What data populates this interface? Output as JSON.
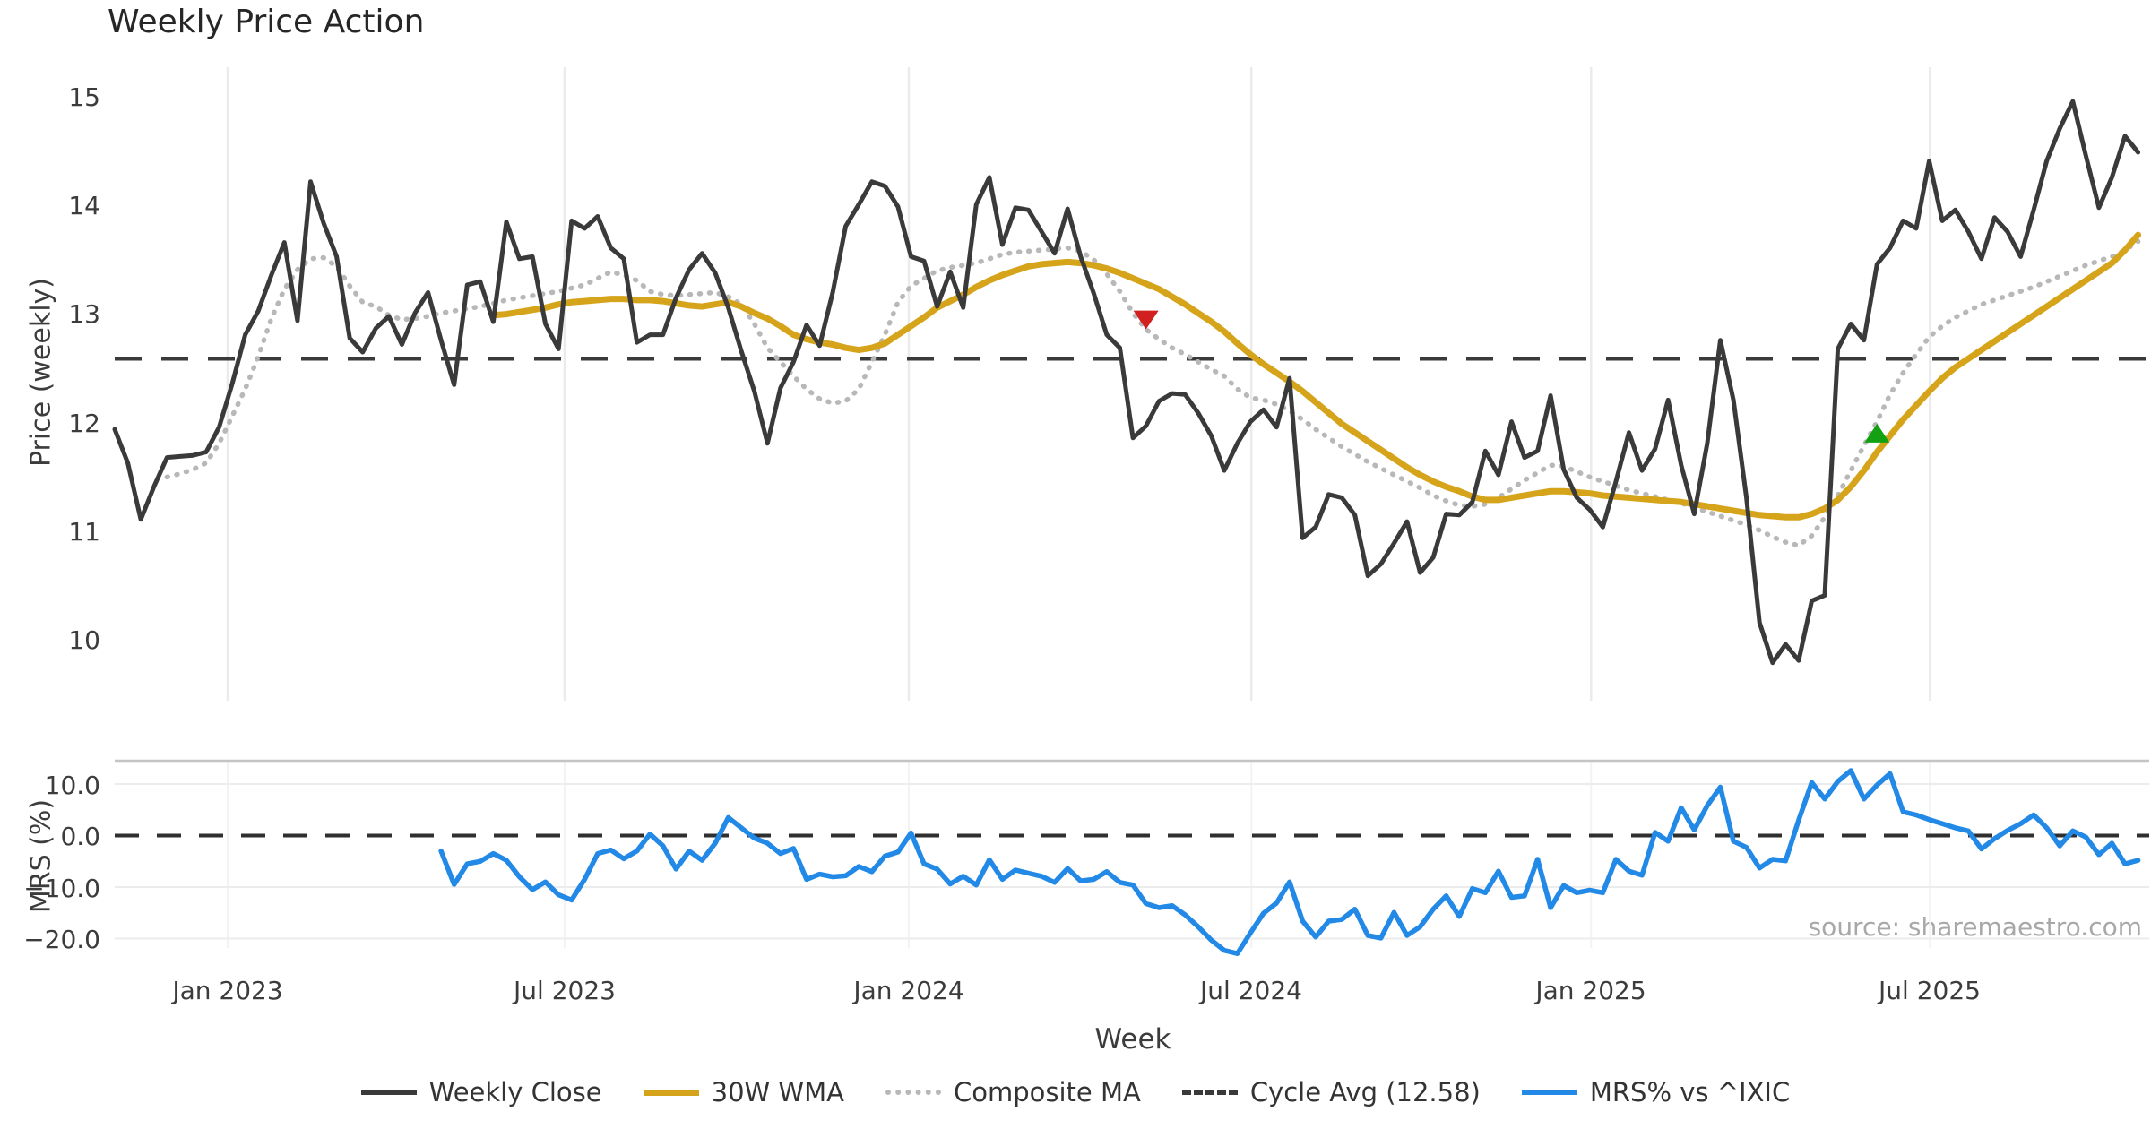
{
  "title": "Weekly Price Action",
  "source_text": "source: sharemaestro.com",
  "legend": {
    "items": [
      {
        "label": "Weekly Close",
        "color": "#3a3a3a",
        "style": "solid"
      },
      {
        "label": "30W WMA",
        "color": "#d6a41b",
        "style": "solid"
      },
      {
        "label": "Composite MA",
        "color": "#b8b8b8",
        "style": "dotted"
      },
      {
        "label": "Cycle Avg (12.58)",
        "color": "#3a3a3a",
        "style": "dashed"
      },
      {
        "label": "MRS% vs ^IXIC",
        "color": "#2289e6",
        "style": "solid"
      }
    ]
  },
  "chart_data": {
    "type": "line",
    "title": "Weekly Price Action",
    "x_axis": {
      "label": "Week",
      "tick_labels": [
        "Jan 2023",
        "Jul 2023",
        "Jan 2024",
        "Jul 2024",
        "Jan 2025",
        "Jul 2025"
      ],
      "tick_index_positions": [
        8.65,
        34.46,
        60.83,
        87.07,
        113.1,
        139.05
      ],
      "total_weeks": 156,
      "grid": true
    },
    "price_panel": {
      "ylabel": "Price (weekly)",
      "ytick_labels": [
        "15",
        "14",
        "13",
        "12",
        "11",
        "10"
      ],
      "ytick_values": [
        15,
        14,
        13,
        12,
        11,
        10
      ],
      "ylim": [
        9.4,
        15.3
      ],
      "cycle_avg": 12.58,
      "cycle_avg_color": "#3a3a3a",
      "series": {
        "weekly_close": {
          "name": "Weekly Close",
          "color": "#3a3a3a",
          "start_index": 0,
          "values": [
            11.93,
            11.62,
            11.1,
            11.4,
            11.67,
            11.68,
            11.69,
            11.72,
            11.95,
            12.35,
            12.8,
            13.02,
            13.35,
            13.65,
            12.93,
            14.21,
            13.83,
            13.52,
            12.77,
            12.64,
            12.86,
            12.97,
            12.71,
            13.0,
            13.19,
            12.75,
            12.34,
            13.26,
            13.29,
            12.92,
            13.84,
            13.5,
            13.52,
            12.9,
            12.67,
            13.85,
            13.78,
            13.89,
            13.6,
            13.5,
            12.73,
            12.8,
            12.8,
            13.14,
            13.4,
            13.55,
            13.37,
            13.05,
            12.65,
            12.28,
            11.8,
            12.31,
            12.55,
            12.89,
            12.7,
            13.19,
            13.8,
            14.0,
            14.21,
            14.17,
            13.98,
            13.52,
            13.48,
            13.06,
            13.38,
            13.05,
            14.0,
            14.25,
            13.63,
            13.97,
            13.95,
            13.75,
            13.55,
            13.96,
            13.52,
            13.18,
            12.8,
            12.68,
            11.85,
            11.96,
            12.19,
            12.26,
            12.25,
            12.08,
            11.87,
            11.55,
            11.8,
            12.0,
            12.11,
            11.95,
            12.4,
            10.93,
            11.03,
            11.33,
            11.3,
            11.14,
            10.58,
            10.69,
            10.88,
            11.08,
            10.61,
            10.75,
            11.15,
            11.14,
            11.26,
            11.73,
            11.51,
            12.0,
            11.67,
            11.73,
            12.24,
            11.56,
            11.3,
            11.19,
            11.03,
            11.45,
            11.9,
            11.55,
            11.75,
            12.2,
            11.6,
            11.15,
            11.8,
            12.75,
            12.2,
            11.3,
            10.15,
            9.78,
            9.95,
            9.8,
            10.35,
            10.4,
            12.67,
            12.9,
            12.75,
            13.45,
            13.6,
            13.85,
            13.78,
            14.4,
            13.85,
            13.95,
            13.75,
            13.5,
            13.88,
            13.75,
            13.52,
            13.95,
            14.4,
            14.7,
            14.95,
            14.45,
            13.97,
            14.25,
            14.63,
            14.48
          ]
        },
        "wma_30w": {
          "name": "30W WMA",
          "color": "#d6a41b",
          "start_index": 29,
          "values": [
            12.98,
            12.99,
            13.01,
            13.03,
            13.05,
            13.08,
            13.1,
            13.11,
            13.12,
            13.13,
            13.13,
            13.12,
            13.12,
            13.11,
            13.09,
            13.07,
            13.06,
            13.08,
            13.1,
            13.06,
            13.0,
            12.95,
            12.88,
            12.8,
            12.76,
            12.73,
            12.71,
            12.68,
            12.66,
            12.68,
            12.72,
            12.8,
            12.88,
            12.96,
            13.05,
            13.11,
            13.17,
            13.24,
            13.3,
            13.35,
            13.39,
            13.43,
            13.45,
            13.46,
            13.47,
            13.46,
            13.44,
            13.41,
            13.37,
            13.32,
            13.27,
            13.22,
            13.15,
            13.08,
            13.0,
            12.92,
            12.83,
            12.72,
            12.62,
            12.53,
            12.45,
            12.37,
            12.28,
            12.18,
            12.08,
            11.98,
            11.9,
            11.82,
            11.74,
            11.66,
            11.58,
            11.51,
            11.45,
            11.4,
            11.36,
            11.31,
            11.28,
            11.28,
            11.3,
            11.32,
            11.34,
            11.36,
            11.36,
            11.35,
            11.34,
            11.32,
            11.31,
            11.3,
            11.29,
            11.28,
            11.27,
            11.26,
            11.24,
            11.22,
            11.2,
            11.18,
            11.16,
            11.14,
            11.13,
            11.12,
            11.12,
            11.15,
            11.2,
            11.28,
            11.4,
            11.55,
            11.72,
            11.87,
            12.02,
            12.15,
            12.28,
            12.4,
            12.5,
            12.58,
            12.66,
            12.74,
            12.82,
            12.9,
            12.98,
            13.06,
            13.14,
            13.22,
            13.3,
            13.38,
            13.46,
            13.58,
            13.72
          ]
        },
        "composite_ma": {
          "name": "Composite MA",
          "color": "#b8b8b8",
          "start_index": 4,
          "values": [
            11.49,
            11.52,
            11.56,
            11.62,
            11.8,
            12.05,
            12.3,
            12.6,
            12.95,
            13.22,
            13.4,
            13.5,
            13.51,
            13.43,
            13.25,
            13.1,
            13.06,
            12.98,
            12.94,
            12.95,
            12.97,
            13.0,
            13.02,
            13.04,
            13.06,
            13.09,
            13.12,
            13.14,
            13.16,
            13.18,
            13.2,
            13.23,
            13.26,
            13.32,
            13.38,
            13.35,
            13.3,
            13.2,
            13.17,
            13.16,
            13.17,
            13.18,
            13.19,
            13.15,
            13.08,
            12.9,
            12.68,
            12.55,
            12.42,
            12.3,
            12.21,
            12.17,
            12.19,
            12.3,
            12.55,
            12.8,
            13.1,
            13.25,
            13.32,
            13.39,
            13.42,
            13.44,
            13.46,
            13.5,
            13.54,
            13.56,
            13.57,
            13.58,
            13.59,
            13.6,
            13.57,
            13.49,
            13.36,
            13.2,
            13.0,
            12.85,
            12.76,
            12.68,
            12.62,
            12.55,
            12.48,
            12.42,
            12.3,
            12.22,
            12.2,
            12.16,
            12.1,
            12.02,
            11.93,
            11.85,
            11.77,
            11.7,
            11.63,
            11.57,
            11.51,
            11.45,
            11.39,
            11.32,
            11.27,
            11.23,
            11.22,
            11.24,
            11.3,
            11.38,
            11.46,
            11.53,
            11.6,
            11.59,
            11.54,
            11.49,
            11.45,
            11.41,
            11.37,
            11.34,
            11.31,
            11.28,
            11.25,
            11.21,
            11.17,
            11.13,
            11.09,
            11.05,
            11.0,
            10.94,
            10.89,
            10.86,
            10.95,
            11.12,
            11.32,
            11.55,
            11.78,
            12.0,
            12.25,
            12.45,
            12.62,
            12.78,
            12.88,
            12.96,
            13.02,
            13.08,
            13.12,
            13.16,
            13.2,
            13.24,
            13.29,
            13.34,
            13.39,
            13.44,
            13.48,
            13.52,
            13.58,
            13.66
          ]
        }
      },
      "markers": [
        {
          "name": "sell-signal-marker",
          "shape": "triangle-down",
          "week_index": 79,
          "price": 12.94,
          "color": "#d21f1f"
        },
        {
          "name": "buy-signal-marker",
          "shape": "triangle-up",
          "week_index": 135,
          "price": 11.89,
          "color": "#13a113"
        }
      ]
    },
    "mrs_panel": {
      "ylabel": "MRS (%)",
      "ytick_labels": [
        "10.0",
        "0.0",
        "−10.0",
        "−20.0"
      ],
      "ytick_values": [
        10,
        0,
        -10,
        -20
      ],
      "ylim": [
        -24,
        14
      ],
      "zero_line_dashed": true,
      "series": {
        "mrs_vs_ixic": {
          "name": "MRS% vs ^IXIC",
          "color": "#2289e6",
          "start_index": 25,
          "values": [
            -3.0,
            -9.5,
            -5.5,
            -5.0,
            -3.5,
            -4.8,
            -8.0,
            -10.5,
            -9.0,
            -11.5,
            -12.5,
            -8.5,
            -3.5,
            -2.8,
            -4.5,
            -3.0,
            0.3,
            -2.0,
            -6.5,
            -3.0,
            -4.8,
            -1.5,
            3.5,
            1.5,
            -0.5,
            -1.5,
            -3.5,
            -2.5,
            -8.5,
            -7.5,
            -8.0,
            -7.8,
            -6.0,
            -7.0,
            -4.0,
            -3.2,
            0.5,
            -5.5,
            -6.5,
            -9.4,
            -7.9,
            -9.6,
            -4.7,
            -8.5,
            -6.7,
            -7.3,
            -7.9,
            -9.1,
            -6.4,
            -8.8,
            -8.5,
            -7.0,
            -9.1,
            -9.6,
            -13.2,
            -14.0,
            -13.6,
            -15.4,
            -17.7,
            -20.3,
            -22.3,
            -22.9,
            -18.9,
            -15.1,
            -13.1,
            -9.0,
            -16.6,
            -19.7,
            -16.6,
            -16.3,
            -14.3,
            -19.4,
            -19.9,
            -14.9,
            -19.4,
            -17.7,
            -14.3,
            -11.7,
            -15.7,
            -10.3,
            -11.1,
            -6.9,
            -12.0,
            -11.7,
            -4.6,
            -14.0,
            -9.7,
            -11.1,
            -10.6,
            -11.1,
            -4.6,
            -6.9,
            -7.7,
            0.6,
            -1.1,
            5.4,
            1.1,
            5.8,
            9.4,
            -1.1,
            -2.3,
            -6.3,
            -4.6,
            -4.9,
            3.0,
            10.3,
            7.1,
            10.5,
            12.6,
            7.1,
            9.8,
            12.0,
            4.6,
            4.0,
            3.1,
            2.3,
            1.5,
            0.9,
            -2.6,
            -0.6,
            1.0,
            2.3,
            4.0,
            1.5,
            -2.0,
            0.9,
            -0.3,
            -3.7,
            -1.5,
            -5.5,
            -4.8
          ]
        }
      }
    }
  }
}
